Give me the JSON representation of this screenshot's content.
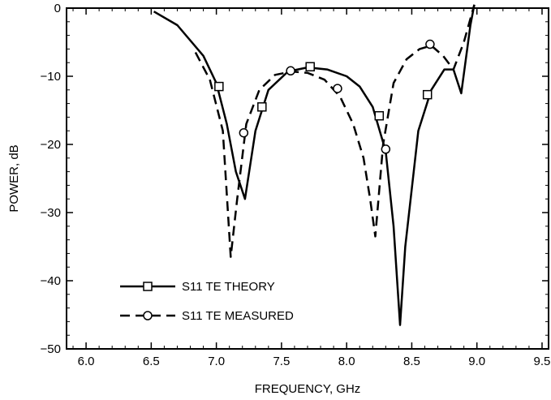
{
  "chart_data": {
    "type": "line",
    "title": "",
    "xlabel": "FREQUENCY, GHz",
    "ylabel": "POWER, dB",
    "xlim": [
      5.85,
      9.55
    ],
    "ylim": [
      -50,
      0
    ],
    "xticks": [
      6.0,
      6.5,
      7.0,
      7.5,
      8.0,
      8.5,
      9.0,
      9.5
    ],
    "xtick_labels": [
      "6.0",
      "6.5",
      "7.0",
      "7.5",
      "8.0",
      "8.5",
      "9.0",
      "9.5"
    ],
    "yticks": [
      0,
      -10,
      -20,
      -30,
      -40,
      -50
    ],
    "ytick_labels": [
      "0",
      "−10",
      "−20",
      "−30",
      "−40",
      "−50"
    ],
    "grid": false,
    "legend_position": "lower-left",
    "series": [
      {
        "name": "S11 TE THEORY",
        "line_style": "solid",
        "marker": "square",
        "color": "#000000",
        "x": [
          6.52,
          6.7,
          6.9,
          7.0,
          7.08,
          7.15,
          7.22,
          7.3,
          7.4,
          7.55,
          7.7,
          7.85,
          8.0,
          8.1,
          8.2,
          8.3,
          8.36,
          8.41,
          8.45,
          8.55,
          8.65,
          8.75,
          8.82,
          8.88,
          8.95,
          8.98
        ],
        "y": [
          -0.5,
          -2.5,
          -7.0,
          -11.0,
          -17.0,
          -24.0,
          -28.0,
          -18.0,
          -12.0,
          -9.3,
          -8.7,
          -9.0,
          -10.0,
          -11.5,
          -14.5,
          -21.0,
          -32.0,
          -46.5,
          -35.0,
          -18.0,
          -12.0,
          -9.0,
          -9.0,
          -12.5,
          -2.5,
          0.5
        ],
        "marker_x": [
          7.02,
          7.35,
          7.72,
          8.25,
          8.62
        ],
        "marker_y": [
          -11.5,
          -14.5,
          -8.6,
          -15.8,
          -12.7
        ]
      },
      {
        "name": "S11 TE MEASURED",
        "line_style": "dashed",
        "marker": "circle",
        "color": "#000000",
        "x": [
          6.84,
          6.95,
          7.05,
          7.11,
          7.16,
          7.23,
          7.33,
          7.45,
          7.58,
          7.7,
          7.83,
          7.95,
          8.05,
          8.13,
          8.18,
          8.22,
          8.28,
          8.36,
          8.46,
          8.56,
          8.65,
          8.74,
          8.82,
          8.9,
          8.98
        ],
        "y": [
          -6.5,
          -10.5,
          -18.0,
          -36.5,
          -28.0,
          -17.0,
          -12.0,
          -9.8,
          -9.3,
          -9.5,
          -10.5,
          -13.0,
          -17.0,
          -22.0,
          -28.0,
          -33.5,
          -20.0,
          -11.0,
          -7.5,
          -6.0,
          -5.5,
          -7.0,
          -9.0,
          -5.0,
          0.5
        ],
        "marker_x": [
          7.21,
          7.57,
          7.93,
          8.3,
          8.64
        ],
        "marker_y": [
          -18.3,
          -9.2,
          -11.8,
          -20.7,
          -5.3
        ]
      }
    ]
  }
}
